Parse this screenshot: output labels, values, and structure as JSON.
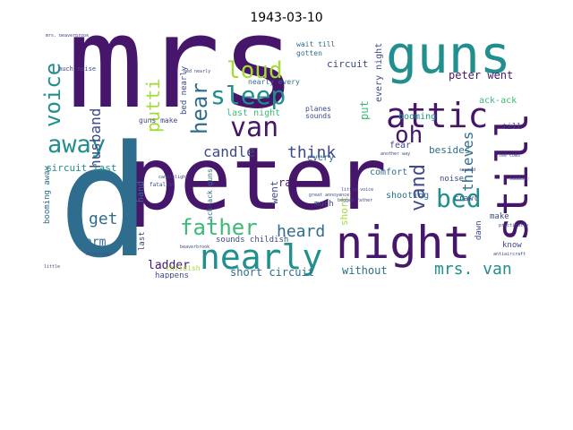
{
  "title": "1943-03-10",
  "colors": {
    "background": "#ffffff",
    "dark_purple": "#46166b",
    "blue": "#2f6d8e",
    "teal": "#218f8d",
    "green": "#3bbb75",
    "yellow_green": "#a5db36",
    "deep_blue": "#3e4989"
  },
  "words": [
    "mrs",
    "peter",
    "d",
    "night",
    "still",
    "guns",
    "attic",
    "nearly",
    "sleep",
    "van",
    "voice",
    "away",
    "loud",
    "oh",
    "father",
    "hear",
    "bed",
    "heard",
    "husband",
    "putti",
    "candle",
    "think",
    "vand",
    "mrs. van",
    "thieves",
    "get",
    "arm",
    "ladder",
    "short circuit",
    "without",
    "sounds childish",
    "peter went",
    "circuit",
    "every night",
    "ack-ack",
    "booming",
    "put",
    "besides",
    "fear",
    "comfort",
    "shooting",
    "noise",
    "crawl",
    "make",
    "dawn",
    "know",
    "till",
    "rat",
    "every",
    "went",
    "last night",
    "nearly every",
    "planes",
    "sounds",
    "bed nearly",
    "wait till",
    "gotten",
    "circuit last",
    "booming away",
    "hand",
    "last",
    "happens",
    "childish",
    "guns make",
    "much noise",
    "much",
    "short",
    "mrs. beaverbrook",
    "fatalist",
    "candlelight",
    "ack-ack guns",
    "little voice",
    "great annoyance",
    "begged father",
    "another way",
    "lee cows",
    "practically",
    "suddenly",
    "seemed",
    "antiaircraft",
    "beaverbrook",
    "shivering",
    "little",
    "bed nearly"
  ]
}
